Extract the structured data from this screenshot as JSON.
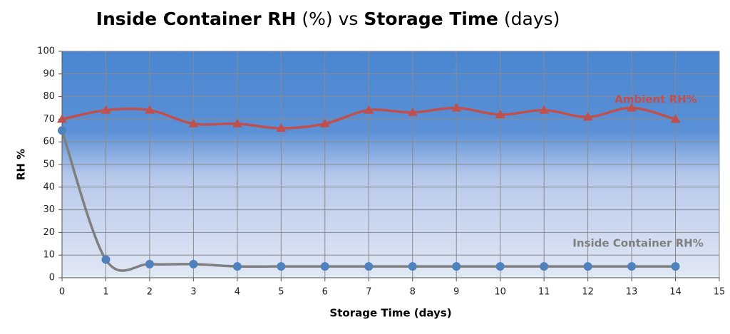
{
  "chart_data": {
    "type": "line",
    "title": [
      {
        "text": "Inside Container RH",
        "bold": true
      },
      {
        "text": " (%) vs ",
        "bold": false
      },
      {
        "text": "Storage Time",
        "bold": true
      },
      {
        "text": " (days)",
        "bold": false
      }
    ],
    "x_label": "Storage Time (days)",
    "y_label": "RH %",
    "x": [
      0,
      1,
      2,
      3,
      4,
      5,
      6,
      7,
      8,
      9,
      10,
      11,
      12,
      13,
      14
    ],
    "series": [
      {
        "name": "Ambient RH%",
        "color": "#c0504d",
        "marker": "triangle",
        "values": [
          70,
          74,
          74,
          68,
          68,
          66,
          68,
          74,
          73,
          75,
          72,
          74,
          71,
          75,
          70
        ]
      },
      {
        "name": "Inside Container RH%",
        "color": "#7f7f7f",
        "marker": "circle",
        "marker_color": "#4f81bd",
        "values": [
          65,
          8,
          6,
          6,
          5,
          5,
          5,
          5,
          5,
          5,
          5,
          5,
          5,
          5,
          5
        ]
      }
    ],
    "xlim": [
      0,
      15
    ],
    "xticks": [
      0,
      1,
      2,
      3,
      4,
      5,
      6,
      7,
      8,
      9,
      10,
      11,
      12,
      13,
      14,
      15
    ],
    "ylim": [
      0,
      100
    ],
    "yticks": [
      0,
      10,
      20,
      30,
      40,
      50,
      60,
      70,
      80,
      90,
      100
    ],
    "grid": true
  }
}
